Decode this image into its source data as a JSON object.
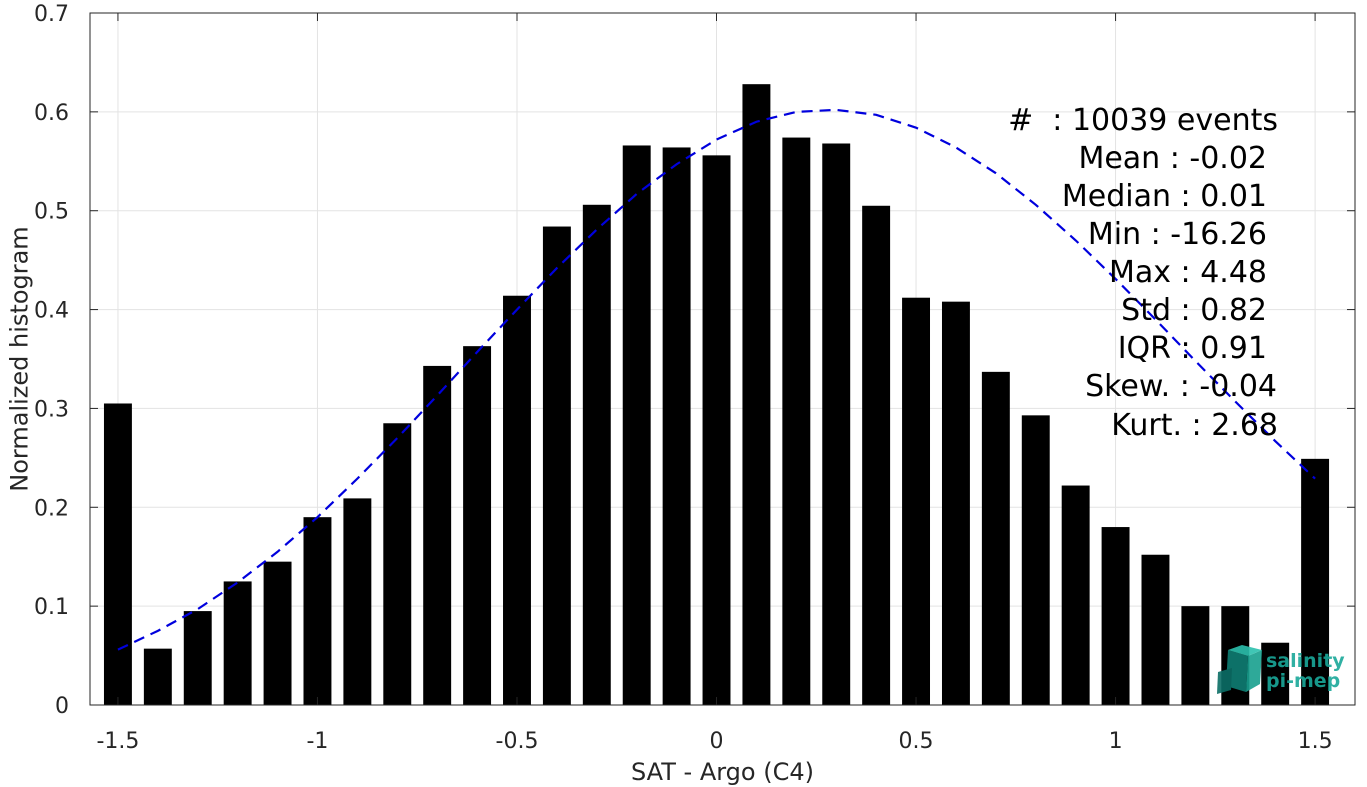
{
  "chart_data": {
    "type": "bar",
    "xlabel": "SAT - Argo (C4)",
    "ylabel": "Normalized histogram",
    "xlim": [
      -1.57,
      1.6
    ],
    "ylim": [
      0,
      0.7
    ],
    "xticks": [
      -1.5,
      -1,
      -0.5,
      0,
      0.5,
      1,
      1.5
    ],
    "xtick_labels": [
      "-1.5",
      "-1",
      "-0.5",
      "0",
      "0.5",
      "1",
      "1.5"
    ],
    "yticks": [
      0,
      0.1,
      0.2,
      0.3,
      0.4,
      0.5,
      0.6,
      0.7
    ],
    "ytick_labels": [
      "0",
      "0.1",
      "0.2",
      "0.3",
      "0.4",
      "0.5",
      "0.6",
      "0.7"
    ],
    "grid": true,
    "bar_width": 0.07,
    "bar_color": "#000000",
    "bins": [
      -1.5,
      -1.4,
      -1.3,
      -1.2,
      -1.1,
      -1.0,
      -0.9,
      -0.8,
      -0.7,
      -0.6,
      -0.5,
      -0.4,
      -0.3,
      -0.2,
      -0.1,
      0.0,
      0.1,
      0.2,
      0.3,
      0.4,
      0.5,
      0.6,
      0.7,
      0.8,
      0.9,
      1.0,
      1.1,
      1.2,
      1.3,
      1.4,
      1.5
    ],
    "values": [
      0.305,
      0.057,
      0.095,
      0.125,
      0.145,
      0.19,
      0.209,
      0.285,
      0.343,
      0.363,
      0.414,
      0.484,
      0.506,
      0.566,
      0.564,
      0.556,
      0.628,
      0.574,
      0.568,
      0.505,
      0.412,
      0.408,
      0.337,
      0.293,
      0.222,
      0.18,
      0.152,
      0.1,
      0.1,
      0.063,
      0.249
    ],
    "fit": {
      "name": "",
      "color": "#0000dd",
      "style": "dashed",
      "x": [
        -1.5,
        -1.4,
        -1.3,
        -1.2,
        -1.1,
        -1.0,
        -0.9,
        -0.8,
        -0.7,
        -0.6,
        -0.5,
        -0.4,
        -0.3,
        -0.2,
        -0.1,
        0.0,
        0.1,
        0.2,
        0.3,
        0.4,
        0.5,
        0.6,
        0.7,
        0.8,
        0.9,
        1.0,
        1.1,
        1.2,
        1.3,
        1.4,
        1.5
      ],
      "y": [
        0.056,
        0.075,
        0.097,
        0.124,
        0.155,
        0.19,
        0.229,
        0.27,
        0.313,
        0.357,
        0.4,
        0.442,
        0.481,
        0.517,
        0.547,
        0.572,
        0.59,
        0.6,
        0.602,
        0.597,
        0.584,
        0.564,
        0.538,
        0.506,
        0.47,
        0.431,
        0.39,
        0.348,
        0.307,
        0.267,
        0.229
      ]
    }
  },
  "stats": [
    "#  : 10039 events",
    "Mean : -0.02",
    "Median : 0.01",
    "Min : -16.26",
    "Max : 4.48",
    "Std : 0.82",
    "IQR : 0.91",
    "Skew. : -0.04",
    "Kurt. : 2.68"
  ],
  "logo": {
    "line1": "salinity",
    "line2": "pi-mep",
    "color": "#1aa89a"
  }
}
